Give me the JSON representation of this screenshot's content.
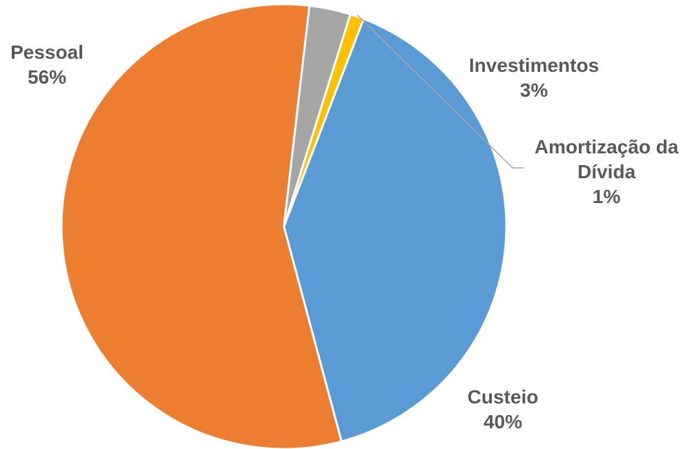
{
  "chart_data": {
    "type": "pie",
    "title": "",
    "slices": [
      {
        "label": [
          "Custeio"
        ],
        "value": 40,
        "display": "40%",
        "color": "#5b9bd5"
      },
      {
        "label": [
          "Pessoal"
        ],
        "value": 56,
        "display": "56%",
        "color": "#ed7d31"
      },
      {
        "label": [
          "Investimentos"
        ],
        "value": 3,
        "display": "3%",
        "color": "#a5a5a5"
      },
      {
        "label": [
          "Amortização da",
          "Dívida"
        ],
        "value": 1,
        "display": "1%",
        "color": "#ffc000"
      }
    ],
    "legend": "none",
    "data_labels": "outside with category name and percent"
  }
}
